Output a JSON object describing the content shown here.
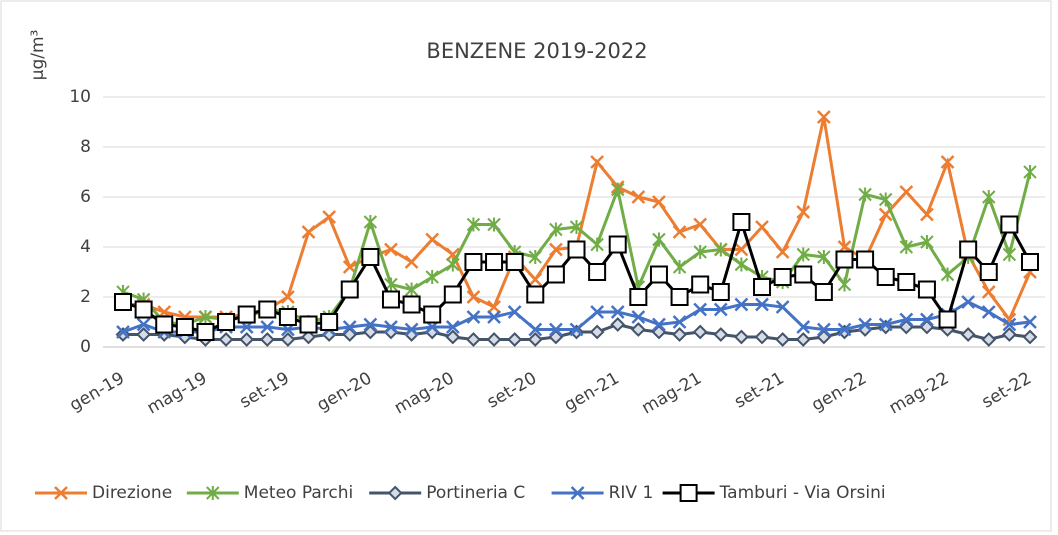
{
  "chart_data": {
    "type": "line",
    "title": "BENZENE 2019-2022",
    "y_label": "µg/m³",
    "categories": [
      "gen-19",
      null,
      null,
      null,
      "mag-19",
      null,
      null,
      null,
      "set-19",
      null,
      null,
      null,
      "gen-20",
      null,
      null,
      null,
      "mag-20",
      null,
      null,
      null,
      "set-20",
      null,
      null,
      null,
      "gen-21",
      null,
      null,
      null,
      "mag-21",
      null,
      null,
      null,
      "set-21",
      null,
      null,
      null,
      "gen-22",
      null,
      null,
      null,
      "mag-22",
      null,
      null,
      null,
      "set-22"
    ],
    "ylim": [
      0,
      10
    ],
    "yticks": [
      0,
      2,
      4,
      6,
      8,
      10
    ],
    "grid": true,
    "series": [
      {
        "name": "Direzione",
        "color": "#ed7d31",
        "marker": "x",
        "values": [
          1.7,
          1.7,
          1.4,
          1.2,
          1.2,
          1.2,
          1.3,
          1.5,
          2.0,
          4.6,
          5.2,
          3.2,
          3.6,
          3.9,
          3.4,
          4.3,
          3.7,
          2.0,
          1.6,
          3.6,
          2.7,
          3.9,
          4.0,
          7.4,
          6.4,
          6.0,
          5.8,
          4.6,
          4.9,
          3.9,
          3.9,
          4.8,
          3.8,
          5.4,
          9.2,
          4.0,
          3.5,
          5.3,
          6.2,
          5.3,
          7.4,
          3.7,
          2.2,
          1.1,
          3.0
        ]
      },
      {
        "name": "Meteo Parchi",
        "color": "#70ad47",
        "marker": "star",
        "values": [
          2.2,
          1.9,
          1.0,
          0.9,
          1.2,
          1.1,
          1.2,
          1.5,
          1.4,
          1.0,
          1.2,
          2.3,
          5.0,
          2.5,
          2.3,
          2.8,
          3.3,
          4.9,
          4.9,
          3.8,
          3.6,
          4.7,
          4.8,
          4.1,
          6.3,
          2.4,
          4.3,
          3.2,
          3.8,
          3.9,
          3.3,
          2.8,
          2.6,
          3.7,
          3.6,
          2.5,
          6.1,
          5.9,
          4.0,
          4.2,
          2.9,
          3.6,
          6.0,
          3.7,
          7.0
        ]
      },
      {
        "name": "Portineria C",
        "color": "#44546a",
        "marker": "diamond",
        "values": [
          0.5,
          0.5,
          0.5,
          0.4,
          0.3,
          0.3,
          0.3,
          0.3,
          0.3,
          0.4,
          0.5,
          0.5,
          0.6,
          0.6,
          0.5,
          0.6,
          0.4,
          0.3,
          0.3,
          0.3,
          0.3,
          0.4,
          0.6,
          0.6,
          0.9,
          0.7,
          0.6,
          0.5,
          0.6,
          0.5,
          0.4,
          0.4,
          0.3,
          0.3,
          0.4,
          0.6,
          0.7,
          0.8,
          0.8,
          0.8,
          0.7,
          0.5,
          0.3,
          0.5,
          0.4
        ]
      },
      {
        "name": "RIV 1",
        "color": "#4472c4",
        "marker": "x",
        "values": [
          0.6,
          0.9,
          0.6,
          0.6,
          0.6,
          0.8,
          0.8,
          0.8,
          0.7,
          0.8,
          0.7,
          0.8,
          0.9,
          0.8,
          0.7,
          0.8,
          0.8,
          1.2,
          1.2,
          1.4,
          0.7,
          0.7,
          0.7,
          1.4,
          1.4,
          1.2,
          0.9,
          1.0,
          1.5,
          1.5,
          1.7,
          1.7,
          1.6,
          0.8,
          0.7,
          0.7,
          0.9,
          0.9,
          1.1,
          1.1,
          1.3,
          1.8,
          1.4,
          0.9,
          1.0
        ]
      },
      {
        "name": "Tamburi - Via Orsini",
        "color": "#000000",
        "marker": "square",
        "values": [
          1.8,
          1.5,
          0.9,
          0.8,
          0.6,
          1.0,
          1.3,
          1.5,
          1.2,
          0.9,
          1.0,
          2.3,
          3.6,
          1.9,
          1.7,
          1.3,
          2.1,
          3.4,
          3.4,
          3.4,
          2.1,
          2.9,
          3.9,
          3.0,
          4.1,
          2.0,
          2.9,
          2.0,
          2.5,
          2.2,
          5.0,
          2.4,
          2.8,
          2.9,
          2.2,
          3.5,
          3.5,
          2.8,
          2.6,
          2.3,
          1.1,
          3.9,
          3.0,
          4.9,
          3.4
        ]
      }
    ]
  }
}
